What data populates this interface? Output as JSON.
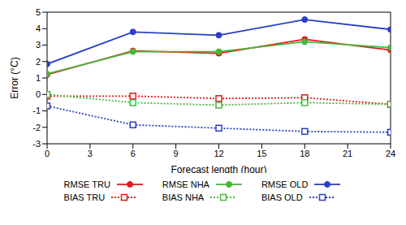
{
  "chart_data": {
    "type": "line",
    "x_label": "Forecast length (hour)",
    "y_label": "Error (°C)",
    "xlim": [
      0,
      24
    ],
    "xticks": [
      0,
      3,
      6,
      9,
      12,
      15,
      18,
      21,
      24
    ],
    "ylim": [
      -3,
      5
    ],
    "yticks": [
      -3,
      -2,
      -1,
      0,
      1,
      2,
      3,
      4,
      5
    ],
    "grid": false,
    "legend": "bottom",
    "x": [
      0,
      6,
      12,
      18,
      24
    ],
    "series": [
      {
        "name": "RMSE TRU",
        "color": "#e41a1c",
        "marker": "circle",
        "line_style": "solid",
        "values": [
          1.2,
          2.65,
          2.5,
          3.35,
          2.7
        ]
      },
      {
        "name": "RMSE NHA",
        "color": "#47b83a",
        "marker": "circle",
        "line_style": "solid",
        "values": [
          1.25,
          2.6,
          2.6,
          3.2,
          2.85
        ]
      },
      {
        "name": "RMSE OLD",
        "color": "#2b3fc6",
        "marker": "circle",
        "line_style": "solid",
        "values": [
          1.85,
          3.8,
          3.6,
          4.55,
          3.95
        ]
      },
      {
        "name": "BIAS TRU",
        "color": "#e41a1c",
        "marker": "square",
        "line_style": "dotted",
        "values": [
          -0.1,
          -0.1,
          -0.25,
          -0.2,
          -0.6
        ]
      },
      {
        "name": "BIAS NHA",
        "color": "#47b83a",
        "marker": "square",
        "line_style": "dotted",
        "values": [
          0.0,
          -0.5,
          -0.65,
          -0.5,
          -0.6
        ]
      },
      {
        "name": "BIAS OLD",
        "color": "#2b3fc6",
        "marker": "square",
        "line_style": "dotted",
        "values": [
          -0.7,
          -1.85,
          -2.05,
          -2.25,
          -2.3
        ]
      }
    ]
  }
}
